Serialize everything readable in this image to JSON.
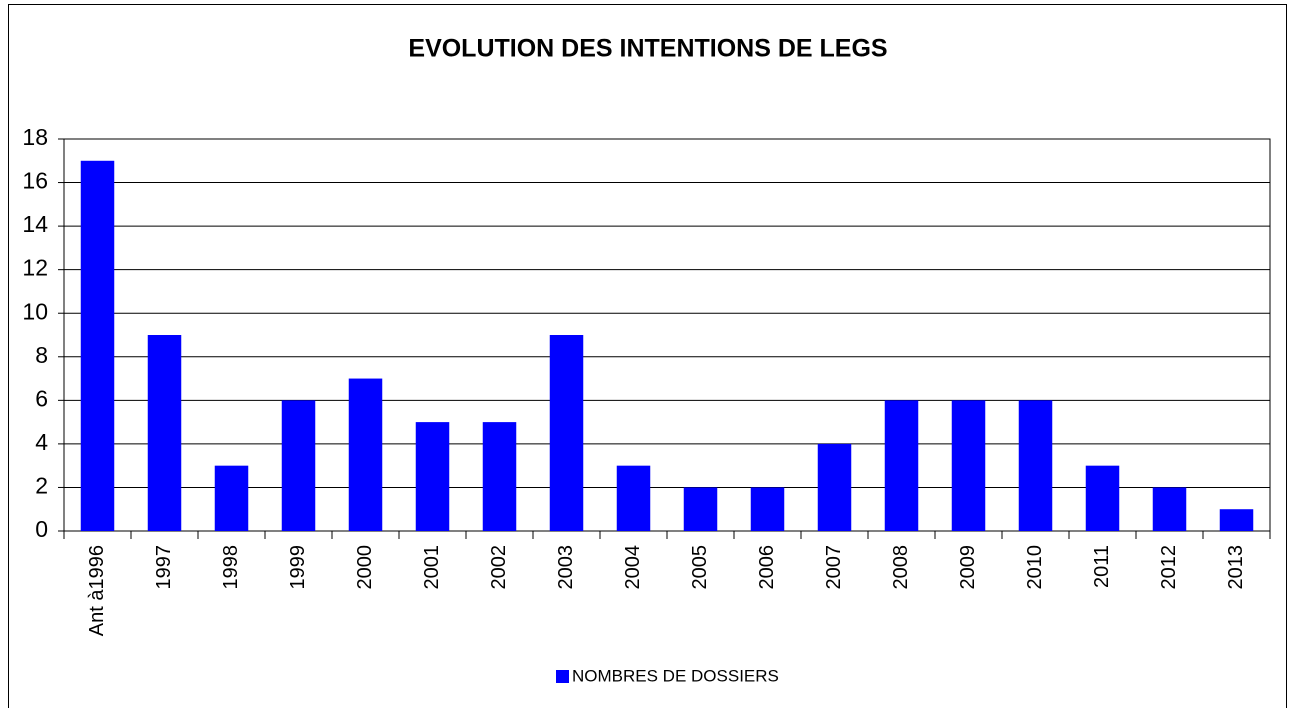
{
  "chart_data": {
    "type": "bar",
    "title": "EVOLUTION DES INTENTIONS DE LEGS",
    "categories": [
      "Ant à1996",
      "1997",
      "1998",
      "1999",
      "2000",
      "2001",
      "2002",
      "2003",
      "2004",
      "2005",
      "2006",
      "2007",
      "2008",
      "2009",
      "2010",
      "2011",
      "2012",
      "2013"
    ],
    "series": [
      {
        "name": "NOMBRES DE DOSSIERS",
        "color": "#0000ff",
        "values": [
          17,
          9,
          3,
          6,
          7,
          5,
          5,
          9,
          3,
          2,
          2,
          4,
          6,
          6,
          6,
          3,
          2,
          1
        ]
      }
    ],
    "ylim": [
      0,
      18
    ],
    "yticks": [
      0,
      2,
      4,
      6,
      8,
      10,
      12,
      14,
      16,
      18
    ],
    "grid": true,
    "legend": "bottom"
  }
}
